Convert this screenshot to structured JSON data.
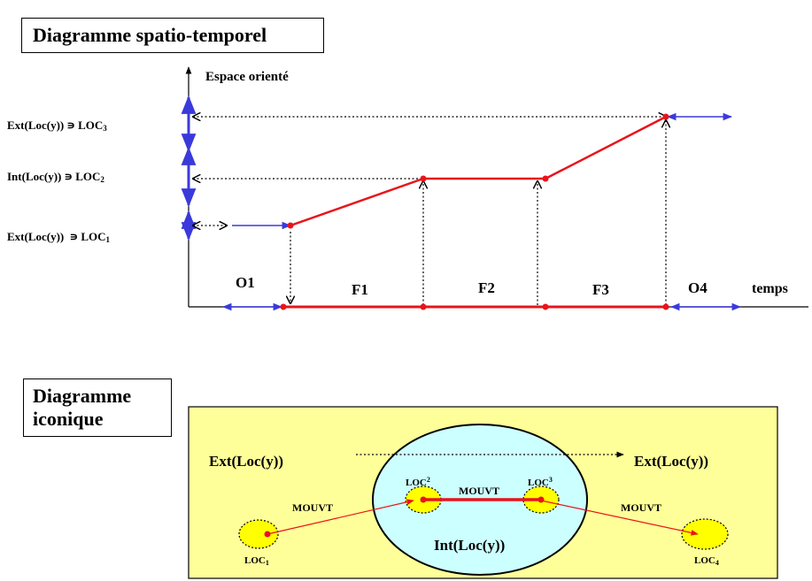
{
  "titles": {
    "spatio_temporal": "Diagramme spatio-temporel",
    "iconic_line1": "Diagramme",
    "iconic_line2": "iconique"
  },
  "spatio": {
    "y_axis_label": "Espace orienté",
    "x_axis_label": "temps",
    "levels": [
      {
        "label": "Ext(Loc(y)) ∍ LOC",
        "sub": "3"
      },
      {
        "label": "Int(Loc(y)) ∍ LOC",
        "sub": "2"
      },
      {
        "label": "Ext(Loc(y))  ∍ LOC",
        "sub": "1"
      }
    ],
    "phases": [
      "O1",
      "F1",
      "F2",
      "F3",
      "O4"
    ]
  },
  "iconic": {
    "ext_left": "Ext(Loc(y))",
    "ext_right": "Ext(Loc(y))",
    "int_label": "Int(Loc(y))",
    "loc1": {
      "label": "LOC",
      "sub": "1"
    },
    "loc2": {
      "label": "LOC",
      "sub": "2"
    },
    "loc3": {
      "label": "LOC",
      "sub": "3"
    },
    "loc4": {
      "label": "LOC",
      "sub": "4"
    },
    "mouvt_left": "MOUVT",
    "mouvt_center": "MOUVT",
    "mouvt_right": "MOUVT"
  },
  "colors": {
    "trajectory": "#e8141b",
    "interval_arrow": "#3a3adb",
    "panel_bg": "#ffff99",
    "ellipse_fill": "#ccffff",
    "loc_fill": "#ffff00"
  }
}
